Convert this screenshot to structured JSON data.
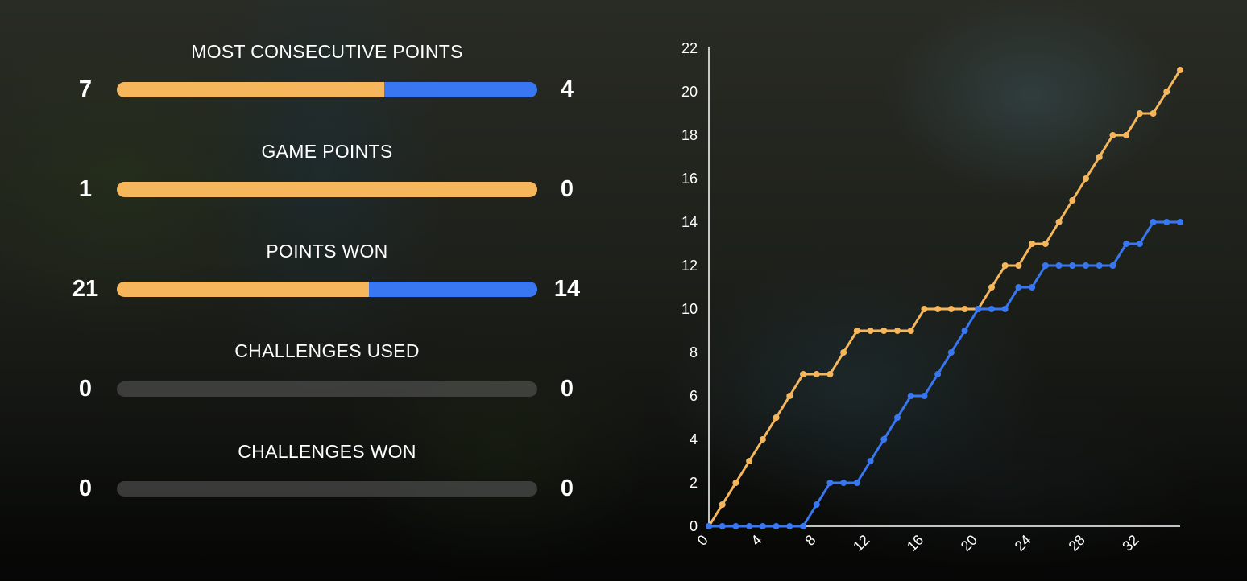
{
  "colors": {
    "player_a": "#f6b75c",
    "player_b": "#3877f1",
    "empty_bar": "#5a5a5a"
  },
  "stats": [
    {
      "title": "MOST CONSECUTIVE POINTS",
      "left_value": "7",
      "right_value": "4",
      "a": 7,
      "b": 4
    },
    {
      "title": "GAME POINTS",
      "left_value": "1",
      "right_value": "0",
      "a": 1,
      "b": 0
    },
    {
      "title": "POINTS WON",
      "left_value": "21",
      "right_value": "14",
      "a": 21,
      "b": 14
    },
    {
      "title": "CHALLENGES USED",
      "left_value": "0",
      "right_value": "0",
      "a": 0,
      "b": 0
    },
    {
      "title": "CHALLENGES WON",
      "left_value": "0",
      "right_value": "0",
      "a": 0,
      "b": 0
    }
  ],
  "chart_data": {
    "type": "line",
    "xlim": [
      0,
      35
    ],
    "ylim": [
      0,
      22
    ],
    "x_ticks": [
      "0",
      "4",
      "8",
      "12",
      "16",
      "20",
      "24",
      "28",
      "32"
    ],
    "y_ticks": [
      "0",
      "2",
      "4",
      "6",
      "8",
      "10",
      "12",
      "14",
      "16",
      "18",
      "20",
      "22"
    ],
    "x": [
      0,
      1,
      2,
      3,
      4,
      5,
      6,
      7,
      8,
      9,
      10,
      11,
      12,
      13,
      14,
      15,
      16,
      17,
      18,
      19,
      20,
      21,
      22,
      23,
      24,
      25,
      26,
      27,
      28,
      29,
      30,
      31,
      32,
      33,
      34,
      35
    ],
    "series": [
      {
        "color": "#f6b75c",
        "values": [
          0,
          1,
          2,
          3,
          4,
          5,
          6,
          7,
          7,
          7,
          8,
          9,
          9,
          9,
          9,
          9,
          10,
          10,
          10,
          10,
          10,
          11,
          12,
          12,
          13,
          13,
          14,
          15,
          16,
          17,
          18,
          18,
          19,
          19,
          20,
          21
        ]
      },
      {
        "color": "#3877f1",
        "values": [
          0,
          0,
          0,
          0,
          0,
          0,
          0,
          0,
          1,
          2,
          2,
          2,
          3,
          4,
          5,
          6,
          6,
          7,
          8,
          9,
          10,
          10,
          10,
          11,
          11,
          12,
          12,
          12,
          12,
          12,
          12,
          13,
          13,
          14,
          14,
          14
        ]
      }
    ]
  }
}
